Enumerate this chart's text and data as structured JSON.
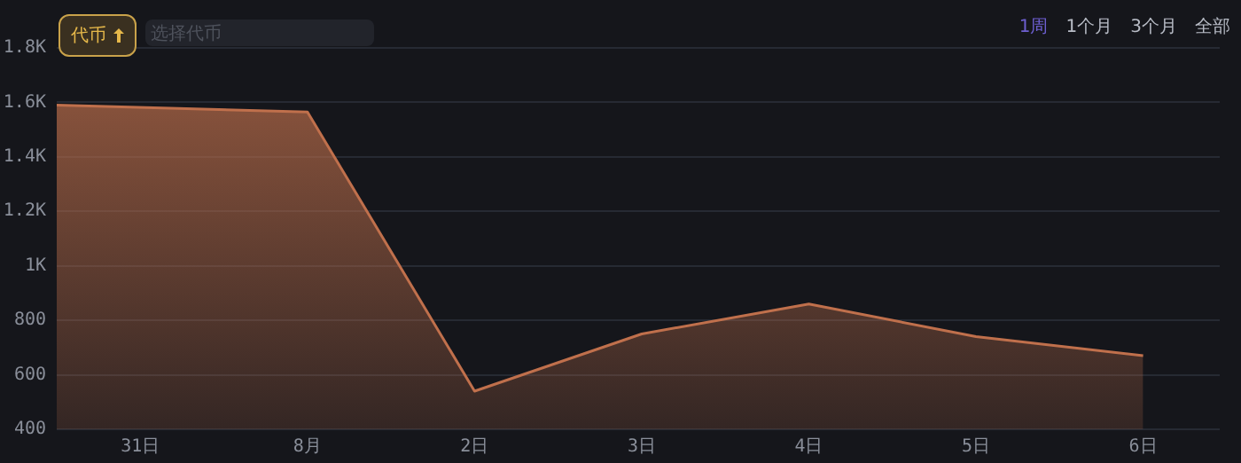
{
  "chart_data": {
    "type": "area",
    "x": [
      "--07-30T12:00",
      "--08-01",
      "--08-02",
      "--08-03",
      "--08-04",
      "--08-05",
      "--08-06"
    ],
    "xlim": [
      "--07-30T12:00",
      "--08-06T11:00"
    ],
    "xticks": [
      {
        "value": "--07-31",
        "label": "31日"
      },
      {
        "value": "--08-01",
        "label": "8月"
      },
      {
        "value": "--08-02",
        "label": "2日"
      },
      {
        "value": "--08-03",
        "label": "3日"
      },
      {
        "value": "--08-04",
        "label": "4日"
      },
      {
        "value": "--08-05",
        "label": "5日"
      },
      {
        "value": "--08-06",
        "label": "6日"
      }
    ],
    "series": [
      {
        "color": "#c0704c",
        "values": [
          1590,
          1565,
          540,
          750,
          860,
          740,
          670
        ]
      }
    ],
    "ylim": [
      400,
      1800
    ],
    "yticks": [
      {
        "value": 400,
        "label": "400"
      },
      {
        "value": 600,
        "label": "600"
      },
      {
        "value": 800,
        "label": "800"
      },
      {
        "value": 1000,
        "label": "1K"
      },
      {
        "value": 1200,
        "label": "1.2K"
      },
      {
        "value": 1400,
        "label": "1.4K"
      },
      {
        "value": 1600,
        "label": "1.6K"
      },
      {
        "value": 1800,
        "label": "1.8K"
      }
    ],
    "grid": "y",
    "legend": false,
    "annotations": [
      "代币",
      "选择代币",
      "1周",
      "1个月",
      "3个月",
      "全部"
    ]
  }
}
